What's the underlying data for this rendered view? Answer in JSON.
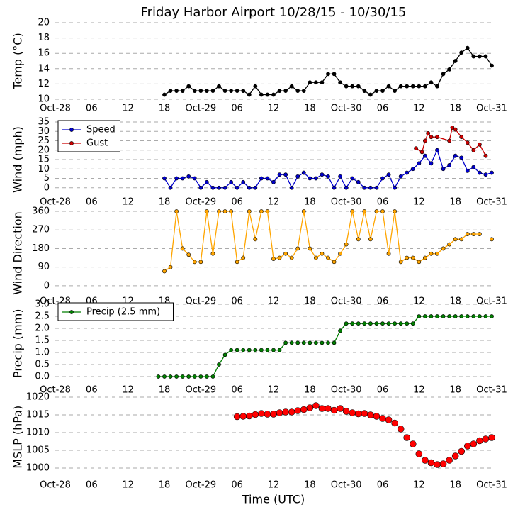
{
  "chart_data": [
    {
      "type": "line",
      "title": "Friday Harbor Airport 10/28/15 - 10/30/15",
      "ylabel": "Temp (°C)",
      "grid": true,
      "xlim": [
        0,
        72
      ],
      "xticks": [
        {
          "value": 0,
          "label": "Oct-28"
        },
        {
          "value": 6,
          "label": "06"
        },
        {
          "value": 12,
          "label": "12"
        },
        {
          "value": 18,
          "label": "18"
        },
        {
          "value": 24,
          "label": "Oct-29"
        },
        {
          "value": 30,
          "label": "06"
        },
        {
          "value": 36,
          "label": "12"
        },
        {
          "value": 42,
          "label": "18"
        },
        {
          "value": 48,
          "label": "Oct-30"
        },
        {
          "value": 54,
          "label": "06"
        },
        {
          "value": 60,
          "label": "12"
        },
        {
          "value": 66,
          "label": "18"
        },
        {
          "value": 72,
          "label": "Oct-31"
        }
      ],
      "ylim": [
        10,
        20
      ],
      "yticks": [
        10,
        12,
        14,
        16,
        18,
        20
      ],
      "series": [
        {
          "color": "#000000",
          "x": [
            18,
            19,
            20,
            21,
            22,
            23,
            24,
            25,
            26,
            27,
            28,
            29,
            30,
            31,
            32,
            33,
            34,
            35,
            36,
            37,
            38,
            39,
            40,
            41,
            42,
            43,
            44,
            45,
            46,
            47,
            48,
            49,
            50,
            51,
            52,
            53,
            54,
            55,
            56,
            57,
            58,
            59,
            60,
            61,
            62,
            63,
            64,
            65,
            66,
            67,
            68,
            69,
            70,
            71,
            72
          ],
          "values": [
            10.6,
            11.1,
            11.1,
            11.1,
            11.7,
            11.1,
            11.1,
            11.1,
            11.1,
            11.7,
            11.1,
            11.1,
            11.1,
            11.1,
            10.6,
            11.7,
            10.6,
            10.6,
            10.6,
            11.1,
            11.1,
            11.7,
            11.1,
            11.1,
            12.2,
            12.2,
            12.2,
            13.3,
            13.3,
            12.2,
            11.7,
            11.7,
            11.7,
            11.1,
            10.6,
            11.1,
            11.1,
            11.7,
            11.1,
            11.7,
            11.7,
            11.7,
            11.7,
            11.7,
            12.2,
            11.7,
            13.3,
            13.9,
            15,
            16.1,
            16.7,
            15.6,
            15.6,
            15.6,
            14.4
          ]
        }
      ]
    },
    {
      "type": "line",
      "ylabel": "Wind (mph)",
      "grid": true,
      "legend": "upper left",
      "xlim": [
        0,
        72
      ],
      "xticks": [
        {
          "value": 0,
          "label": "Oct-28"
        },
        {
          "value": 6,
          "label": "06"
        },
        {
          "value": 12,
          "label": "12"
        },
        {
          "value": 18,
          "label": "18"
        },
        {
          "value": 24,
          "label": "Oct-29"
        },
        {
          "value": 30,
          "label": "06"
        },
        {
          "value": 36,
          "label": "12"
        },
        {
          "value": 42,
          "label": "18"
        },
        {
          "value": 48,
          "label": "Oct-30"
        },
        {
          "value": 54,
          "label": "06"
        },
        {
          "value": 60,
          "label": "12"
        },
        {
          "value": 66,
          "label": "18"
        },
        {
          "value": 72,
          "label": "Oct-31"
        }
      ],
      "ylim": [
        -5,
        35
      ],
      "yticks": [
        0,
        5,
        10,
        15,
        20,
        25,
        30,
        35
      ],
      "series": [
        {
          "name": "Speed",
          "color": "#0000cc",
          "x": [
            18,
            19,
            20,
            21,
            22,
            23,
            24,
            25,
            26,
            27,
            28,
            29,
            30,
            31,
            32,
            33,
            34,
            35,
            36,
            37,
            38,
            39,
            40,
            41,
            42,
            43,
            44,
            45,
            46,
            47,
            48,
            49,
            50,
            51,
            52,
            53,
            54,
            55,
            56,
            57,
            58,
            59,
            60,
            61,
            62,
            63,
            64,
            65,
            66,
            67,
            68,
            69,
            70,
            71,
            72
          ],
          "values": [
            5,
            0,
            5,
            5,
            6,
            5,
            0,
            3,
            0,
            0,
            0,
            3,
            0,
            3,
            0,
            0,
            5,
            5,
            3,
            7,
            7,
            0,
            6,
            8,
            5,
            5,
            7,
            6,
            0,
            6,
            0,
            5,
            3,
            0,
            0,
            0,
            5,
            7,
            0,
            6,
            8,
            10,
            13,
            17,
            13,
            20,
            10,
            12,
            17,
            16,
            9,
            11,
            8,
            7,
            8
          ]
        },
        {
          "name": "Gust",
          "color": "#cc0000",
          "x": [
            59.5,
            60.5,
            61,
            61.5,
            62,
            63,
            65,
            65.5,
            66,
            67,
            68,
            69,
            70,
            71
          ],
          "values": [
            21,
            19,
            25,
            29,
            27,
            27,
            25,
            32,
            31,
            27,
            24,
            20,
            23,
            17
          ]
        }
      ]
    },
    {
      "type": "line",
      "ylabel": "Wind Direction",
      "grid": true,
      "xlim": [
        0,
        72
      ],
      "xticks": [
        {
          "value": 0,
          "label": "Oct-28"
        },
        {
          "value": 6,
          "label": "06"
        },
        {
          "value": 12,
          "label": "12"
        },
        {
          "value": 18,
          "label": "18"
        },
        {
          "value": 24,
          "label": "Oct-29"
        },
        {
          "value": 30,
          "label": "06"
        },
        {
          "value": 36,
          "label": "12"
        },
        {
          "value": 42,
          "label": "18"
        },
        {
          "value": 48,
          "label": "Oct-30"
        },
        {
          "value": 54,
          "label": "06"
        },
        {
          "value": 60,
          "label": "12"
        },
        {
          "value": 66,
          "label": "18"
        },
        {
          "value": 72,
          "label": "Oct-31"
        }
      ],
      "ylim": [
        -45,
        360
      ],
      "yticks": [
        0,
        90,
        180,
        270,
        360
      ],
      "series": [
        {
          "color": "#ffa500",
          "x": [
            18,
            19,
            20,
            21,
            22,
            23,
            24,
            25,
            26,
            27,
            28,
            29,
            30,
            31,
            32,
            33,
            34,
            35,
            36,
            37,
            38,
            39,
            40,
            41,
            42,
            43,
            44,
            45,
            46,
            47,
            48,
            49,
            50,
            51,
            52,
            53,
            54,
            55,
            56,
            57,
            58,
            59,
            60,
            61,
            62,
            63,
            64,
            65,
            66,
            67,
            68,
            69,
            70,
            71,
            72
          ],
          "values": [
            70,
            90,
            360,
            180,
            150,
            115,
            115,
            360,
            155,
            360,
            360,
            360,
            115,
            135,
            360,
            225,
            360,
            360,
            130,
            135,
            155,
            135,
            180,
            360,
            180,
            135,
            155,
            135,
            115,
            155,
            200,
            360,
            225,
            360,
            225,
            360,
            360,
            155,
            360,
            115,
            135,
            135,
            115,
            135,
            155,
            155,
            180,
            200,
            225,
            225,
            250,
            250,
            250,
            null,
            225
          ]
        }
      ]
    },
    {
      "type": "line",
      "ylabel": "Precip (mm)",
      "grid": true,
      "legend": "upper left",
      "xlim": [
        0,
        72
      ],
      "xticks": [
        {
          "value": 0,
          "label": "Oct-28"
        },
        {
          "value": 6,
          "label": "06"
        },
        {
          "value": 12,
          "label": "12"
        },
        {
          "value": 18,
          "label": "18"
        },
        {
          "value": 24,
          "label": "Oct-29"
        },
        {
          "value": 30,
          "label": "06"
        },
        {
          "value": 36,
          "label": "12"
        },
        {
          "value": 42,
          "label": "18"
        },
        {
          "value": 48,
          "label": "Oct-30"
        },
        {
          "value": 54,
          "label": "06"
        },
        {
          "value": 60,
          "label": "12"
        },
        {
          "value": 66,
          "label": "18"
        },
        {
          "value": 72,
          "label": "Oct-31"
        }
      ],
      "ylim": [
        -0.25,
        3
      ],
      "yticks": [
        {
          "value": 0,
          "label": "0.0"
        },
        0.5,
        {
          "value": 1,
          "label": "1.0"
        },
        1.5,
        {
          "value": 2,
          "label": "2.0"
        },
        2.5,
        {
          "value": 3,
          "label": "3.0"
        }
      ],
      "series": [
        {
          "name": "Precip (2.5 mm)",
          "color": "#007f00",
          "x": [
            17,
            18,
            19,
            20,
            21,
            22,
            23,
            24,
            25,
            26,
            27,
            28,
            29,
            30,
            31,
            32,
            33,
            34,
            35,
            36,
            37,
            38,
            39,
            40,
            41,
            42,
            43,
            44,
            45,
            46,
            47,
            48,
            49,
            50,
            51,
            52,
            53,
            54,
            55,
            56,
            57,
            58,
            59,
            60,
            61,
            62,
            63,
            64,
            65,
            66,
            67,
            68,
            69,
            70,
            71,
            72
          ],
          "values": [
            0,
            0,
            0,
            0,
            0,
            0,
            0,
            0,
            0,
            0,
            0.5,
            0.9,
            1.1,
            1.1,
            1.1,
            1.1,
            1.1,
            1.1,
            1.1,
            1.1,
            1.1,
            1.4,
            1.4,
            1.4,
            1.4,
            1.4,
            1.4,
            1.4,
            1.4,
            1.4,
            1.9,
            2.2,
            2.2,
            2.2,
            2.2,
            2.2,
            2.2,
            2.2,
            2.2,
            2.2,
            2.2,
            2.2,
            2.2,
            2.5,
            2.5,
            2.5,
            2.5,
            2.5,
            2.5,
            2.5,
            2.5,
            2.5,
            2.5,
            2.5,
            2.5,
            2.5
          ]
        }
      ]
    },
    {
      "type": "scatter",
      "ylabel": "MSLP (hPa)",
      "xlabel": "Time (UTC)",
      "grid": true,
      "xlim": [
        0,
        72
      ],
      "xticks": [
        {
          "value": 0,
          "label": "Oct-28"
        },
        {
          "value": 6,
          "label": "06"
        },
        {
          "value": 12,
          "label": "12"
        },
        {
          "value": 18,
          "label": "18"
        },
        {
          "value": 24,
          "label": "Oct-29"
        },
        {
          "value": 30,
          "label": "06"
        },
        {
          "value": 36,
          "label": "12"
        },
        {
          "value": 42,
          "label": "18"
        },
        {
          "value": 48,
          "label": "Oct-30"
        },
        {
          "value": 54,
          "label": "06"
        },
        {
          "value": 60,
          "label": "12"
        },
        {
          "value": 66,
          "label": "18"
        },
        {
          "value": 72,
          "label": "Oct-31"
        }
      ],
      "ylim": [
        997.5,
        1020
      ],
      "yticks": [
        1000,
        1005,
        1010,
        1015,
        1020
      ],
      "series": [
        {
          "color": "#ff0000",
          "x": [
            30,
            31,
            32,
            33,
            34,
            35,
            36,
            37,
            38,
            39,
            40,
            41,
            42,
            43,
            44,
            45,
            46,
            47,
            48,
            49,
            50,
            51,
            52,
            53,
            54,
            55,
            56,
            57,
            58,
            59,
            60,
            61,
            62,
            63,
            64,
            65,
            66,
            67,
            68,
            69,
            70,
            71,
            72
          ],
          "values": [
            1014.5,
            1014.6,
            1014.7,
            1015.1,
            1015.4,
            1015.2,
            1015.2,
            1015.6,
            1015.8,
            1015.8,
            1016.2,
            1016.5,
            1017,
            1017.6,
            1016.8,
            1016.8,
            1016.3,
            1016.8,
            1016,
            1015.6,
            1015.3,
            1015.4,
            1015,
            1014.6,
            1014,
            1013.6,
            1012.7,
            1011,
            1008.6,
            1006.8,
            1004,
            1002.2,
            1001.5,
            1001,
            1001.2,
            1002.2,
            1003.4,
            1004.7,
            1006.2,
            1006.8,
            1007.7,
            1008.2,
            1008.6
          ]
        }
      ]
    }
  ]
}
